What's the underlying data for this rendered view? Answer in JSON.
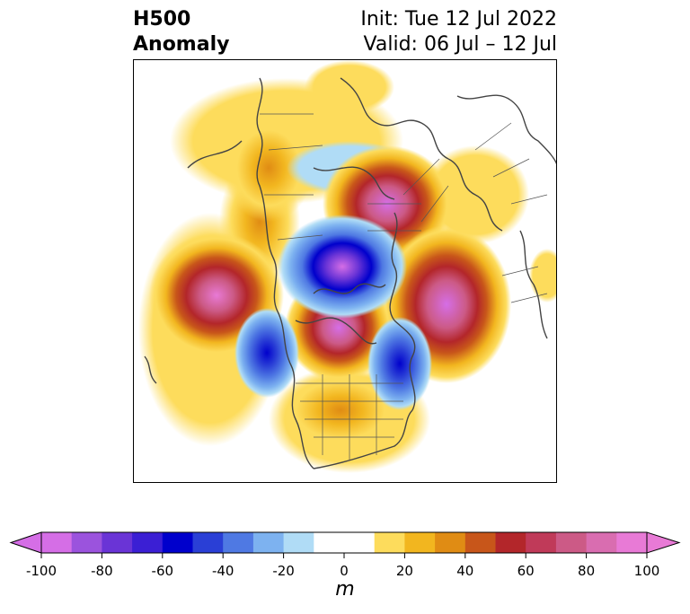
{
  "title": {
    "left_line1": "H500",
    "left_line2": "Anomaly",
    "right_line1": "Init: Tue 12 Jul 2022",
    "right_line2": "Valid: 06 Jul – 12 Jul"
  },
  "colorbar": {
    "ticks": [
      "-100",
      "-80",
      "-60",
      "-40",
      "-20",
      "0",
      "20",
      "40",
      "60",
      "80",
      "100"
    ],
    "unit": "m",
    "colors": [
      "#d56ee6",
      "#9b53dd",
      "#6a34d6",
      "#3b1fd4",
      "#0000cc",
      "#2a3fd6",
      "#4f79e3",
      "#7db2f0",
      "#b0dcf6",
      "#ffffff",
      "#ffffff",
      "#fddc5c",
      "#f2b61f",
      "#e08c14",
      "#c8561a",
      "#b3262a",
      "#c03a59",
      "#cc5a86",
      "#d96db0",
      "#e87ad6"
    ]
  }
}
